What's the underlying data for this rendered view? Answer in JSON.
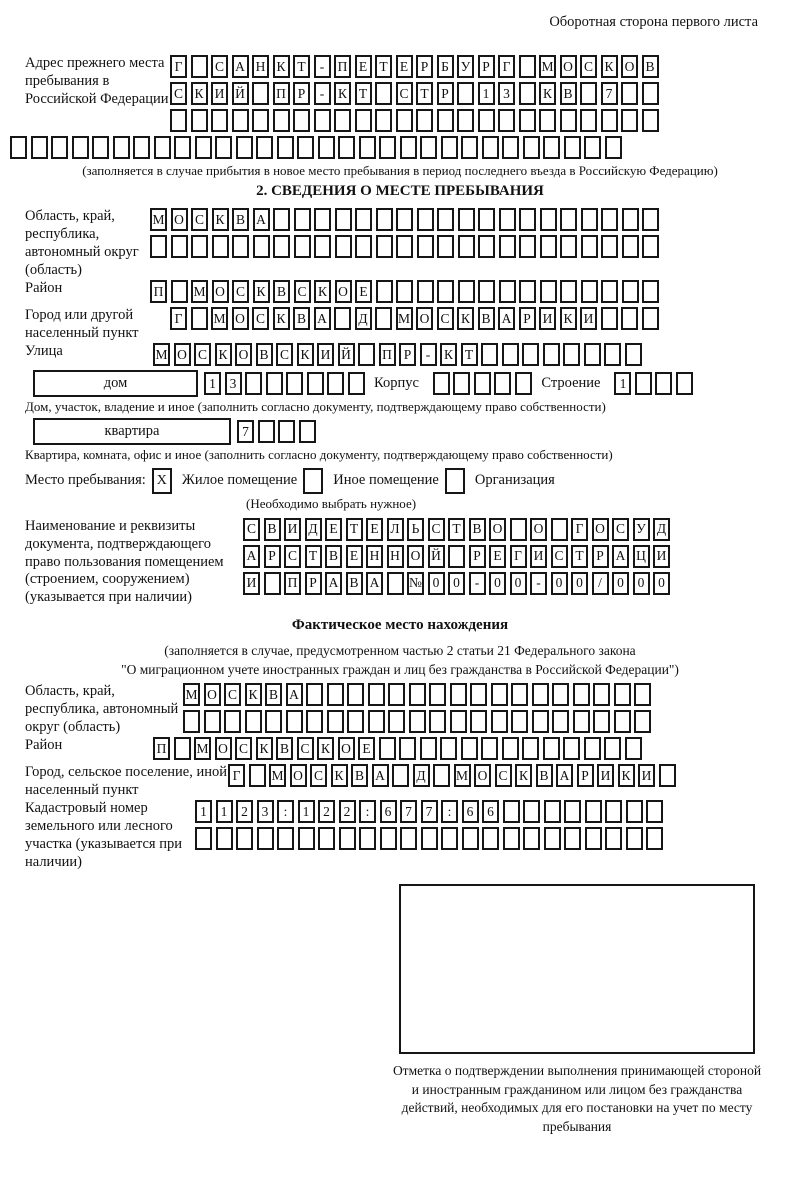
{
  "page": {
    "header_note": "Оборотная сторона первого листа"
  },
  "prev_address": {
    "label": "Адрес прежнего места пребывания в Российской Федерации",
    "rows": [
      {
        "n": 24,
        "text": "Г САНКТ-ПЕТЕРБУРГ МОСКОВ"
      },
      {
        "n": 24,
        "text": "СКИЙ ПР-КТ СТР 13 КВ 7"
      },
      {
        "n": 24,
        "text": ""
      },
      {
        "n": 30,
        "text": ""
      }
    ],
    "note": "(заполняется в случае прибытия в новое место пребывания в период последнего въезда в Российскую Федерацию)"
  },
  "section2": {
    "title": "2. СВЕДЕНИЯ О МЕСТЕ ПРЕБЫВАНИЯ",
    "region": {
      "label": "Область, край, республика, автономный округ (область)",
      "rows": [
        {
          "n": 25,
          "text": "МОСКВА"
        },
        {
          "n": 25,
          "text": ""
        }
      ]
    },
    "district": {
      "label": "Район",
      "row": {
        "n": 25,
        "text": "П МОСКВСКОЕ"
      }
    },
    "city": {
      "label": "Город или другой населенный пункт",
      "row": {
        "n": 24,
        "text": "Г МОСКВА Д МОСКВАРИКИ"
      }
    },
    "street": {
      "label": "Улица",
      "row": {
        "n": 24,
        "text": "МОСКОВСКИЙ ПР-КТ"
      }
    },
    "house": {
      "box_label": "дом",
      "number_cells": {
        "n": 8,
        "text": "13"
      },
      "korpus_label": "Корпус",
      "korpus_cells": {
        "n": 5,
        "text": ""
      },
      "stroenie_label": "Строение",
      "stroenie_cells": {
        "n": 4,
        "text": "1"
      },
      "note": "Дом, участок, владение и иное (заполнить согласно документу, подтверждающему право собственности)"
    },
    "apartment": {
      "box_label": "квартира",
      "number_cells": {
        "n": 4,
        "text": "7"
      },
      "note": "Квартира, комната, офис и иное (заполнить согласно документу, подтверждающему право собственности)"
    },
    "stay_type": {
      "label": "Место пребывания:",
      "options": [
        {
          "mark": "X",
          "label": "Жилое помещение"
        },
        {
          "mark": "",
          "label": "Иное помещение"
        },
        {
          "mark": "",
          "label": "Организация"
        }
      ],
      "note": "(Необходимо выбрать нужное)"
    },
    "document": {
      "label": "Наименование и реквизиты документа, подтверждающего право пользования помещением (строением, сооружением) (указывается при наличии)",
      "rows": [
        {
          "n": 21,
          "text": "СВИДЕТЕЛЬСТВО О ГОСУД"
        },
        {
          "n": 21,
          "text": "АРСТВЕННОЙ РЕГИСТРАЦИ"
        },
        {
          "n": 21,
          "text": "И ПРАВА №00-00-00/000"
        }
      ]
    }
  },
  "section3": {
    "title": "Фактическое место нахождения",
    "note_line1": "(заполняется в случае, предусмотренном частью 2 статьи 21 Федерального закона",
    "note_line2": "\"О миграционном учете иностранных граждан и лиц без гражданства в Российской Федерации\")",
    "region": {
      "label": "Область, край, республика, автономный округ (область)",
      "rows": [
        {
          "n": 23,
          "text": "МОСКВА"
        },
        {
          "n": 23,
          "text": ""
        }
      ]
    },
    "district": {
      "label": "Район",
      "row": {
        "n": 24,
        "text": "П МОСКВСКОЕ"
      }
    },
    "city": {
      "label": "Город, сельское поселение, иной населенный пункт",
      "row": {
        "n": 22,
        "text": "Г МОСКВА Д МОСКВАРИКИ"
      }
    },
    "cadastre": {
      "label": "Кадастровый номер земельного или лесного участка (указывается при наличии)",
      "rows": [
        {
          "n": 23,
          "text": "1123:122:677:66"
        },
        {
          "n": 23,
          "text": ""
        }
      ]
    },
    "stamp_note": "Отметка о подтверждении выполнения принимающей стороной и иностранным гражданином или лицом без гражданства действий, необходимых для его постановки на учет по месту пребывания"
  }
}
